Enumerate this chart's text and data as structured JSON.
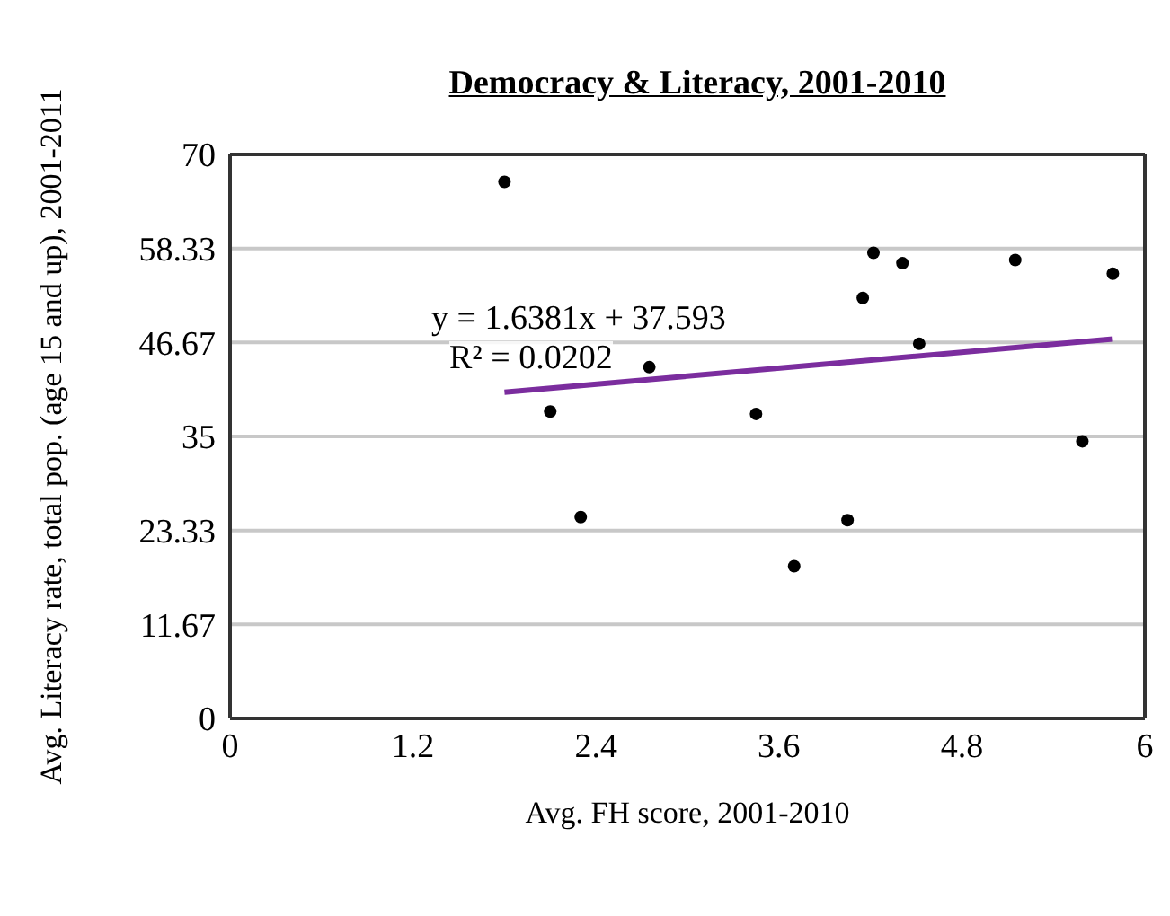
{
  "chart_data": {
    "type": "scatter",
    "title": "Democracy & Literacy, 2001-2010",
    "xlabel": "Avg. FH score, 2001-2010",
    "ylabel": "Avg. Literacy rate, total pop. (age 15 and up), 2001-2011",
    "x": [
      1.8,
      2.1,
      2.3,
      2.75,
      3.45,
      3.7,
      4.05,
      4.15,
      4.22,
      4.41,
      4.52,
      5.15,
      5.59,
      5.79
    ],
    "series": [
      {
        "color": "#000000",
        "values": [
          66.6,
          38.1,
          25.0,
          43.6,
          37.8,
          18.9,
          24.6,
          52.2,
          57.8,
          56.5,
          46.5,
          56.9,
          34.4,
          55.2
        ]
      },
      {
        "type": "line",
        "marker": "none",
        "color": "#7b2d9e",
        "x": [
          1.8,
          5.79
        ],
        "values": [
          40.5,
          47.1
        ]
      }
    ],
    "annotations": [
      "y = 1.6381x + 37.593",
      "R² = 0.0202"
    ],
    "xlim": [
      0,
      6
    ],
    "xticks": [
      0,
      1.2,
      2.4,
      3.6,
      4.8,
      6
    ],
    "ylim": [
      0,
      70
    ],
    "yticks": [
      0,
      {
        "value": 11.67,
        "label": "11.67"
      },
      23.33,
      35,
      46.67,
      58.33,
      70
    ],
    "grid": "y",
    "marker": "circle"
  }
}
